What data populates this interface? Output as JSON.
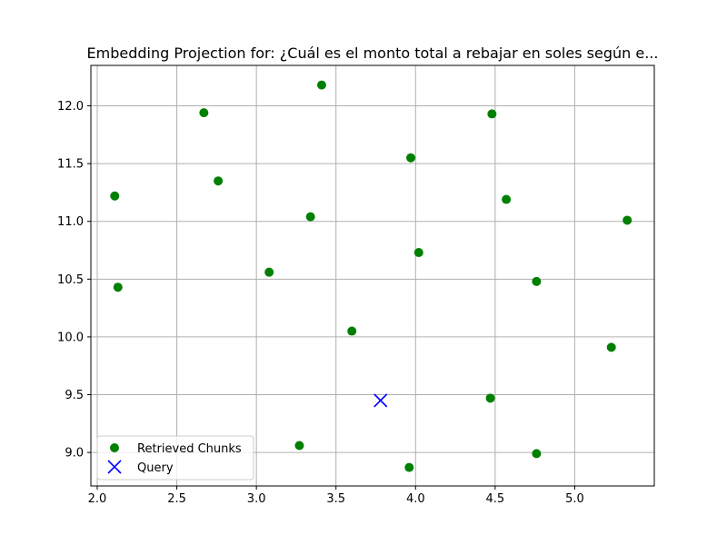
{
  "chart_data": {
    "type": "scatter",
    "title": "Embedding Projection for: ¿Cuál es el monto total a rebajar en soles según e...",
    "xlabel": "",
    "ylabel": "",
    "xlim": [
      1.96,
      5.5
    ],
    "ylim": [
      8.71,
      12.35
    ],
    "xticks": [
      "2.0",
      "2.5",
      "3.0",
      "3.5",
      "4.0",
      "4.5",
      "5.0"
    ],
    "yticks": [
      "9.0",
      "9.5",
      "10.0",
      "10.5",
      "11.0",
      "11.5",
      "12.0"
    ],
    "grid": true,
    "legend_position": "lower-left",
    "colors": {
      "chunks": "#008000",
      "query": "#0000ff",
      "grid": "#b0b0b0"
    },
    "series": [
      {
        "name": "Retrieved Chunks",
        "marker": "circle",
        "x": [
          2.67,
          3.41,
          4.48,
          2.11,
          2.76,
          3.97,
          4.57,
          3.34,
          5.33,
          4.02,
          3.08,
          2.13,
          4.76,
          3.6,
          5.23,
          4.47,
          3.27,
          4.76,
          3.96
        ],
        "y": [
          11.94,
          12.18,
          11.93,
          11.22,
          11.35,
          11.55,
          11.19,
          11.04,
          11.01,
          10.73,
          10.56,
          10.43,
          10.48,
          10.05,
          9.91,
          9.47,
          9.06,
          8.99,
          8.87
        ]
      },
      {
        "name": "Query",
        "marker": "x",
        "x": [
          3.78
        ],
        "y": [
          9.45
        ]
      }
    ]
  }
}
